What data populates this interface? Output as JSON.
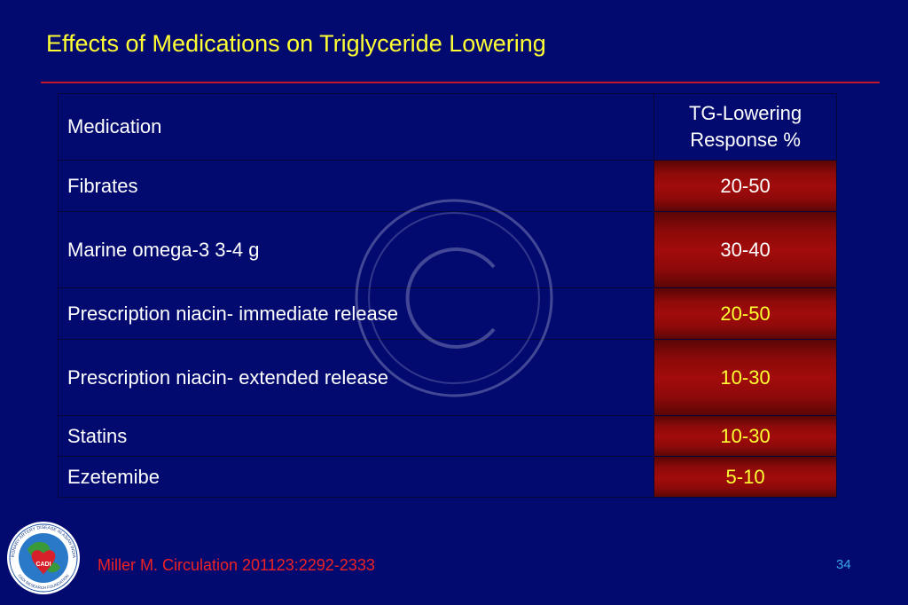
{
  "slide": {
    "title": "Effects of Medications on Triglyceride Lowering",
    "citation": "Miller M. Circulation 201123:2292-2333",
    "page_number": "34"
  },
  "table": {
    "headers": {
      "medication": "Medication",
      "response_line1": "TG-Lowering",
      "response_line2": "Response %"
    },
    "rows": [
      {
        "medication": "Fibrates",
        "response": "20-50",
        "value_color": "white"
      },
      {
        "medication": "Marine omega-3 3-4 g",
        "response": "30-40",
        "value_color": "white"
      },
      {
        "medication": "Prescription niacin- immediate release",
        "response": "20-50",
        "value_color": "yellow"
      },
      {
        "medication": "Prescription niacin- extended release",
        "response": "10-30",
        "value_color": "yellow"
      },
      {
        "medication": "Statins",
        "response": "10-30",
        "value_color": "yellow"
      },
      {
        "medication": "Ezetemibe",
        "response": "5-10",
        "value_color": "yellow"
      }
    ]
  },
  "logo": {
    "ring_text": "CORONARY ARTERY DISEASE IN ASIAN INDIANS",
    "bottom_text": "CADI RESEARCH FOUNDATION",
    "center_text": "CADI"
  },
  "colors": {
    "background": "#020a70",
    "title": "#ffff33",
    "rule": "#c0182a",
    "citation": "#ee2222",
    "page_number": "#3aa6e8",
    "value_cell": "#a20b0b"
  },
  "watermark": {
    "symbol": "copyright-icon"
  }
}
